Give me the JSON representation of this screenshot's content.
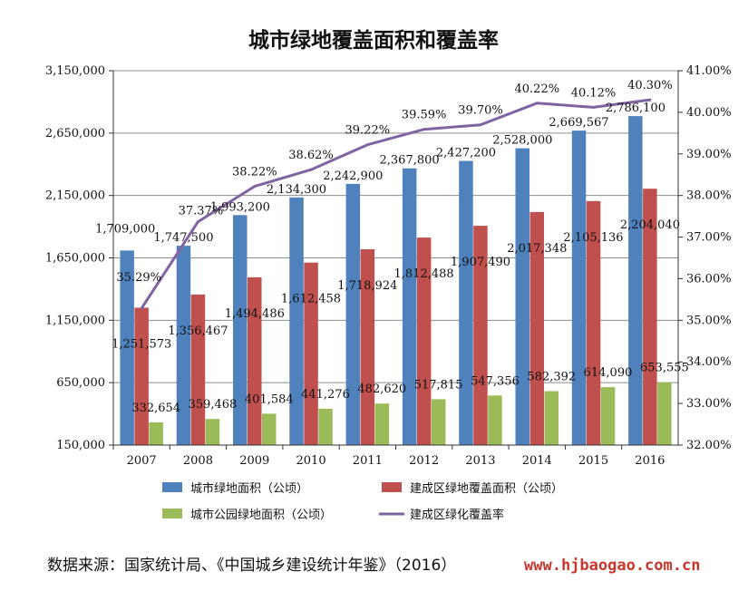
{
  "chart_data": {
    "type": "bar",
    "title": "城市绿地覆盖面积和覆盖率",
    "categories": [
      "2007",
      "2008",
      "2009",
      "2010",
      "2011",
      "2012",
      "2013",
      "2014",
      "2015",
      "2016"
    ],
    "y_left": {
      "min": 150000,
      "max": 3150000,
      "step": 500000,
      "ticks": [
        "150,000",
        "650,000",
        "1,150,000",
        "1,650,000",
        "2,150,000",
        "2,650,000",
        "3,150,000"
      ]
    },
    "y_right": {
      "min": 32,
      "max": 41,
      "ticks": [
        "32.00%",
        "33.00%",
        "34.00%",
        "35.00%",
        "36.00%",
        "37.00%",
        "38.00%",
        "39.00%",
        "40.00%",
        "41.00%"
      ]
    },
    "series": [
      {
        "name": "城市绿地面积（公顷）",
        "color": "#4f81bd",
        "axis": "left",
        "values": [
          1709000,
          1747500,
          1993200,
          2134300,
          2242900,
          2367800,
          2427200,
          2528000,
          2669567,
          2786100
        ],
        "labels": [
          "1,709,000",
          "1,747,500",
          "1,993,200",
          "2,134,300",
          "2,242,900",
          "2,367,800",
          "2,427,200",
          "2,528,000",
          "2,669,567",
          "2,786,100"
        ]
      },
      {
        "name": "建成区绿地覆盖面积（公顷）",
        "color": "#c0504d",
        "axis": "left",
        "values": [
          1251573,
          1356467,
          1494486,
          1612458,
          1718924,
          1812488,
          1907490,
          2017348,
          2105136,
          2204040
        ],
        "labels": [
          "1,251,573",
          "1,356,467",
          "1,494,486",
          "1,612,458",
          "1,718,924",
          "1,812,488",
          "1,907,490",
          "2,017,348",
          "2,105,136",
          "2,204,040"
        ]
      },
      {
        "name": "城市公园绿地面积（公顷）",
        "color": "#9bbb59",
        "axis": "left",
        "values": [
          332654,
          359468,
          401584,
          441276,
          482620,
          517815,
          547356,
          582392,
          614090,
          653555
        ],
        "labels": [
          "332,654",
          "359,468",
          "401,584",
          "441,276",
          "482,620",
          "517,815",
          "547,356",
          "582,392",
          "614,090",
          "653,555"
        ]
      },
      {
        "name": "建成区绿化覆盖率",
        "color": "#8064a2",
        "axis": "right",
        "type": "line",
        "values": [
          35.29,
          37.37,
          38.22,
          38.62,
          39.22,
          39.59,
          39.7,
          40.22,
          40.12,
          40.3
        ],
        "labels": [
          "35.29%",
          "37.37%",
          "38.22%",
          "38.62%",
          "39.22%",
          "39.59%",
          "39.70%",
          "40.22%",
          "40.12%",
          "40.30%"
        ]
      }
    ],
    "grid": true,
    "legend_position": "bottom"
  },
  "footer": {
    "source": "数据来源：国家统计局、《中国城乡建设统计年鉴》（2016）",
    "url": "www.hjbaogao.com.cn"
  }
}
